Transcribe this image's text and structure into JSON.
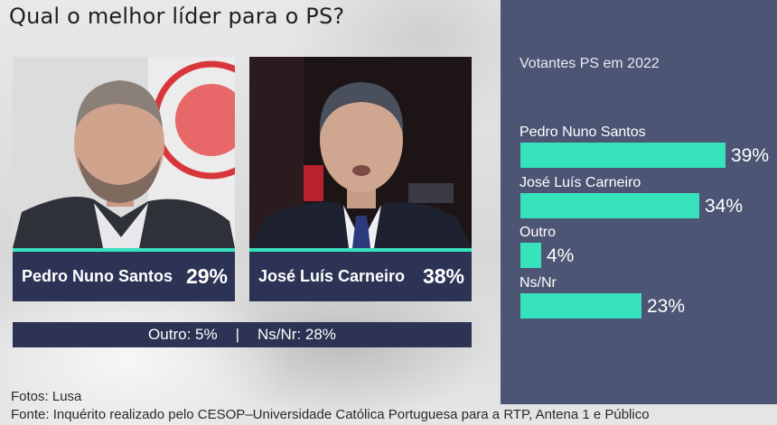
{
  "header": {
    "title": "Qual o melhor líder para o PS?"
  },
  "poll": {
    "candidates": [
      {
        "name": "Pedro Nuno Santos",
        "value": "29%"
      },
      {
        "name": "José Luís Carneiro",
        "value": "38%"
      }
    ],
    "others": {
      "outro": "Outro: 5%",
      "separator": "|",
      "nsnr": "Ns/Nr: 28%"
    }
  },
  "chart_data": {
    "type": "bar",
    "orientation": "horizontal",
    "title": "Votantes PS em 2022",
    "categories": [
      "Pedro Nuno Santos",
      "José Luís Carneiro",
      "Outro",
      "Ns/Nr"
    ],
    "values": [
      39,
      34,
      4,
      23
    ],
    "value_labels": [
      "39%",
      "34%",
      "4%",
      "23%"
    ],
    "xlim": [
      0,
      100
    ],
    "grid": false,
    "bar_color": "#36e3bd"
  },
  "footer": {
    "photos": "Fotos: Lusa",
    "source": "Fonte: Inquérito realizado pelo CESOP–Universidade Católica Portuguesa para a RTP, Antena 1 e Público"
  },
  "colors": {
    "navy": "#2c3354",
    "panel": "#4d5574",
    "accent": "#36e3bd"
  }
}
